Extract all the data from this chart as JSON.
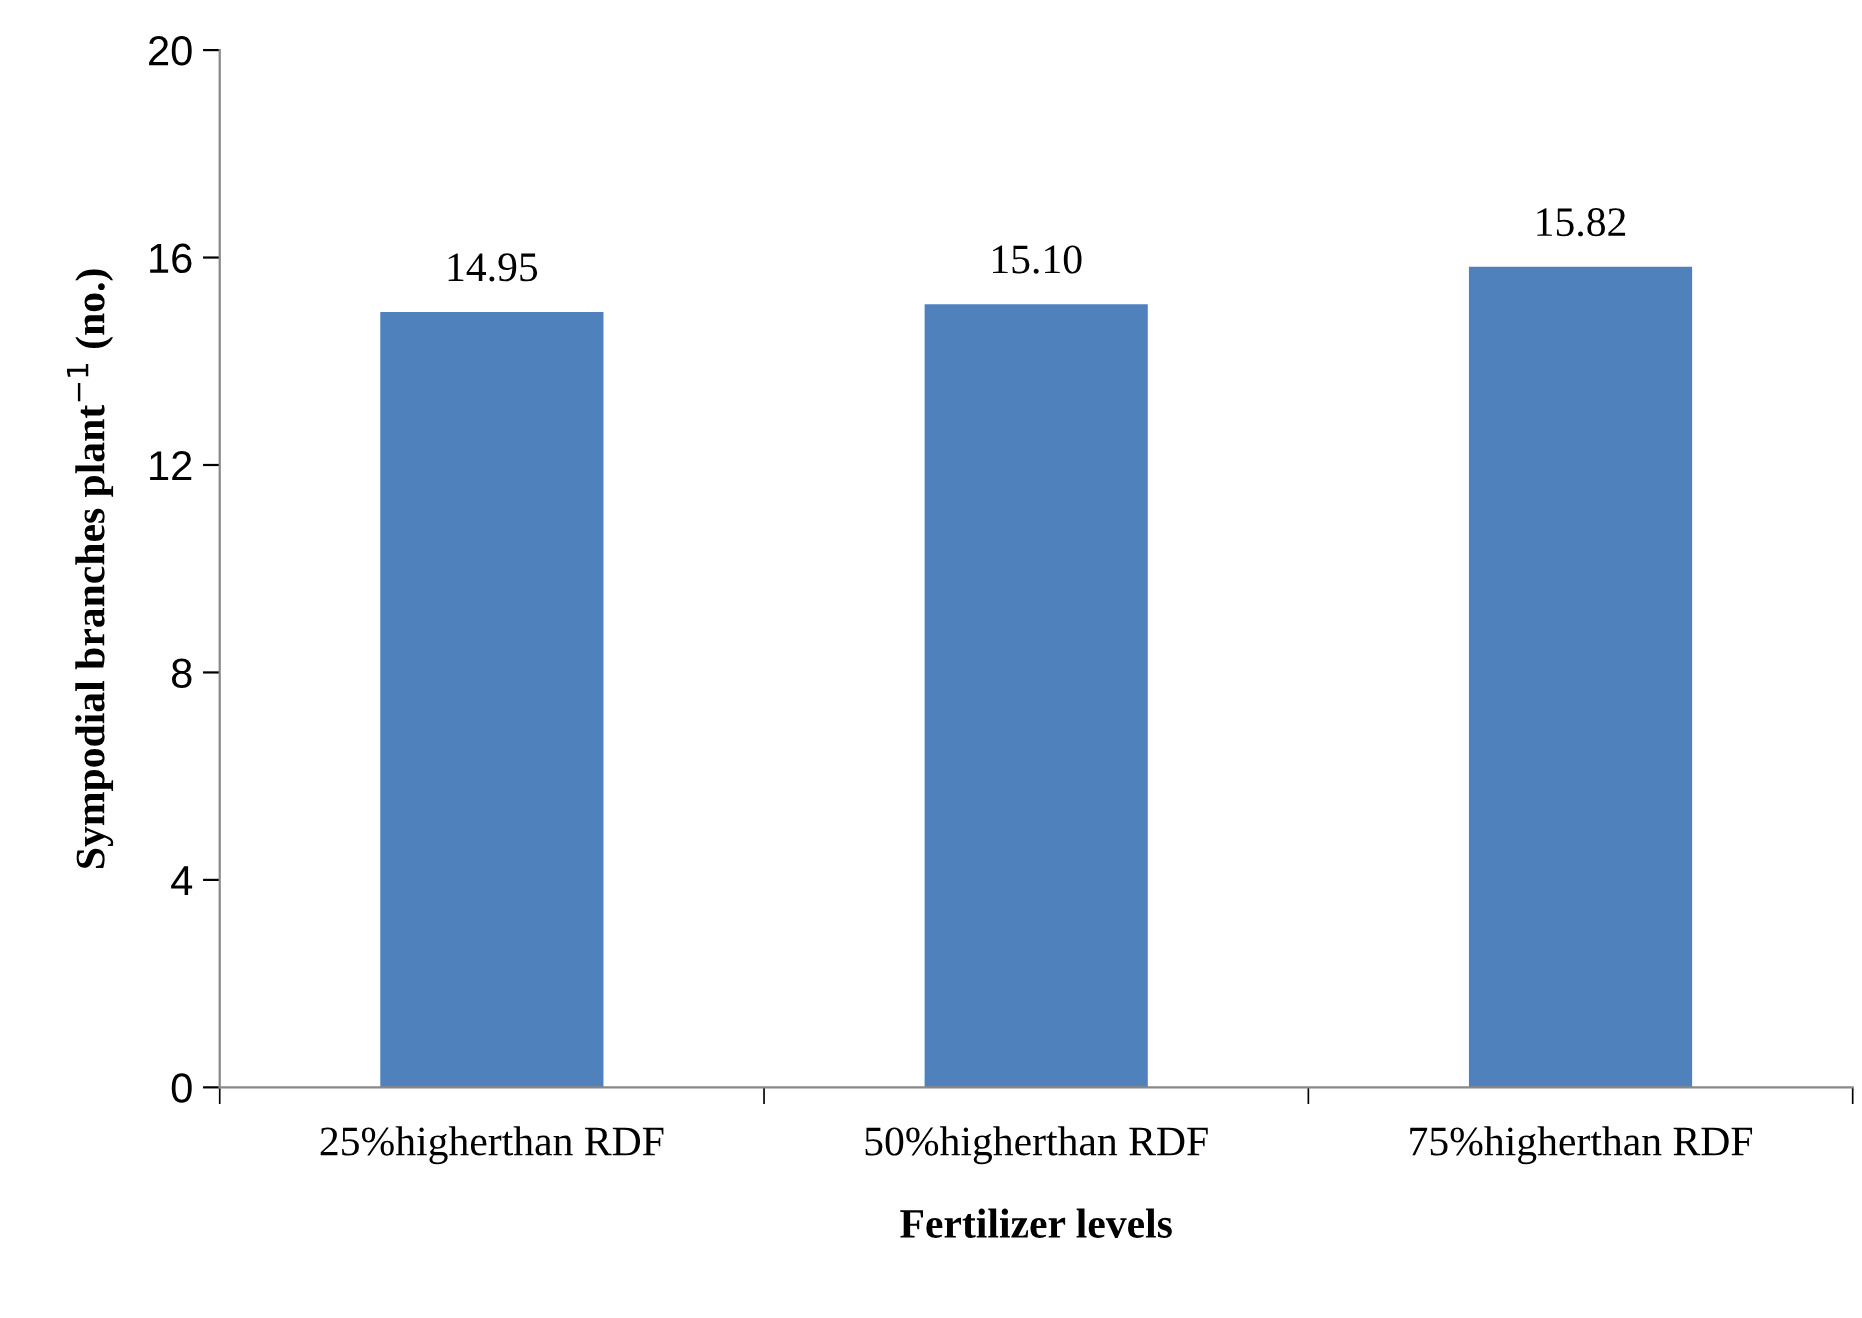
{
  "chart_data": {
    "type": "bar",
    "xlabel": "Fertilizer levels",
    "ylabel": "Sympodial branches plant$^{−1}$ (no.)",
    "categories": [
      "25%higherthan RDF",
      "50%higherthan RDF",
      "75%higherthan RDF"
    ],
    "values": [
      14.95,
      15.1,
      15.82
    ],
    "value_labels": [
      "14.95",
      "15.10",
      "15.82"
    ],
    "color": "#4f81bd",
    "ylim": [
      0,
      20
    ],
    "yticks": [
      0,
      4,
      8,
      12,
      16,
      20
    ],
    "grid": false,
    "legend": false
  }
}
